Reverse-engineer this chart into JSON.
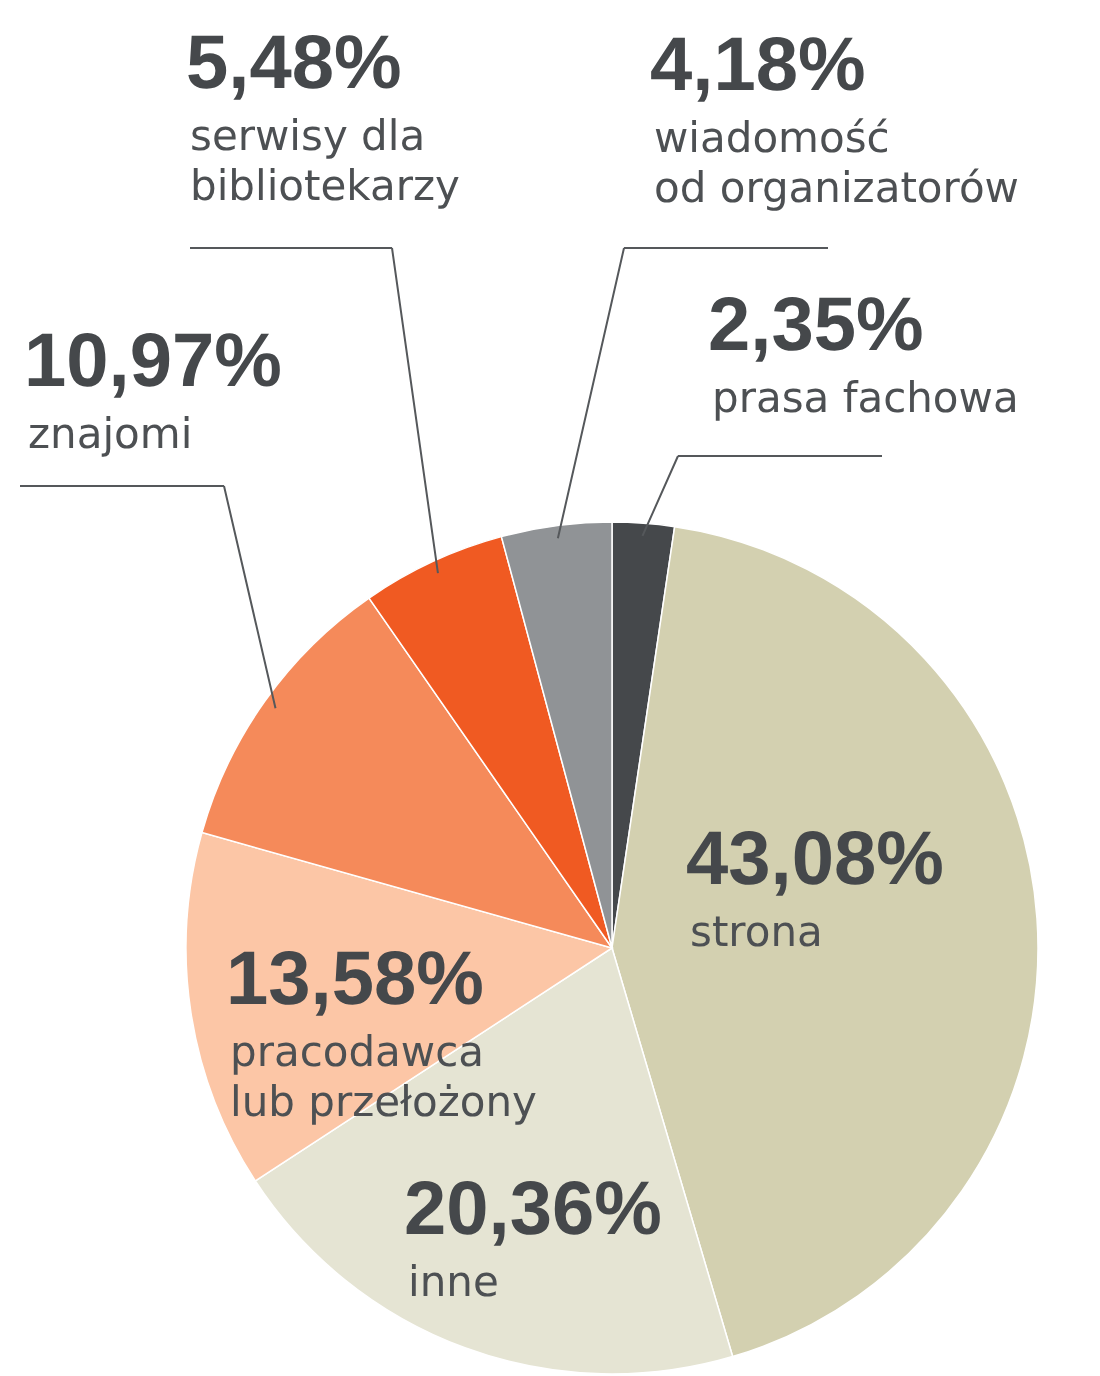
{
  "chart_data": {
    "type": "pie",
    "categories": [
      "prasa fachowa",
      "strona",
      "inne",
      "pracodawca\nlub przełożony",
      "znajomi",
      "serwisy dla\nbibliotekarzy",
      "wiadomość\nod organizatorów"
    ],
    "values": [
      2.35,
      43.08,
      20.36,
      13.58,
      10.97,
      5.48,
      4.18
    ],
    "value_labels": [
      "2,35%",
      "43,08%",
      "20,36%",
      "13,58%",
      "10,97%",
      "5,48%",
      "4,18%"
    ],
    "colors": [
      "#45484b",
      "#d3d0b0",
      "#e5e4d3",
      "#fcc6a6",
      "#f58a5a",
      "#f05a22",
      "#909396"
    ]
  }
}
